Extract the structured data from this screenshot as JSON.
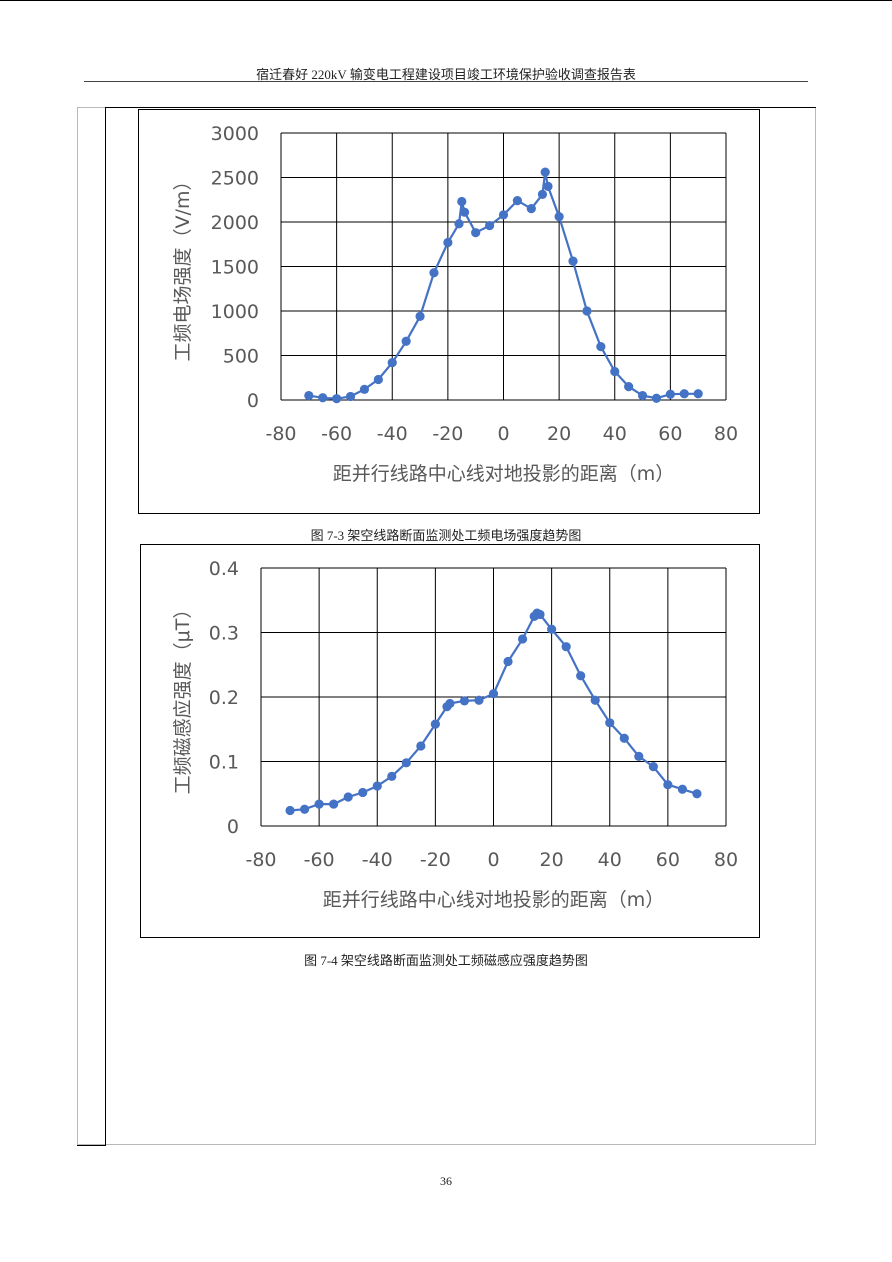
{
  "header": {
    "title": "宿迁春好 220kV 输变电工程建设项目竣工环境保护验收调查报告表"
  },
  "captions": {
    "fig1": "图 7-3  架空线路断面监测处工频电场强度趋势图",
    "fig2": "图 7-4  架空线路断面监测处工频磁感应强度趋势图"
  },
  "page_number": "36",
  "colors": {
    "series": "#4472C4",
    "grid": "#000000",
    "tick_text": "#595959"
  },
  "chart_data": [
    {
      "type": "line",
      "title": "",
      "xlabel": "距并行线路中心线对地投影的距离（m）",
      "ylabel": "工频电场强度（V/m）",
      "xlim": [
        -80,
        80
      ],
      "ylim": [
        0,
        3000
      ],
      "xticks": [
        -80,
        -60,
        -40,
        -20,
        0,
        20,
        40,
        60,
        80
      ],
      "yticks": [
        0,
        500,
        1000,
        1500,
        2000,
        2500,
        3000
      ],
      "grid": true,
      "markers": true,
      "series": [
        {
          "x": [
            -70,
            -65,
            -60,
            -55,
            -50,
            -45,
            -40,
            -35,
            -30,
            -25,
            -20,
            -16,
            -15,
            -14,
            -10,
            -5,
            0,
            5,
            10,
            14,
            15,
            16,
            20,
            25,
            30,
            35,
            40,
            45,
            50,
            55,
            60,
            65,
            70
          ],
          "y": [
            50,
            25,
            15,
            40,
            120,
            230,
            420,
            660,
            940,
            1430,
            1770,
            1980,
            2230,
            2110,
            1880,
            1960,
            2080,
            2240,
            2150,
            2310,
            2560,
            2400,
            2060,
            1560,
            1000,
            600,
            320,
            150,
            50,
            20,
            65,
            70,
            70
          ]
        }
      ]
    },
    {
      "type": "line",
      "title": "",
      "xlabel": "距并行线路中心线对地投影的距离（m）",
      "ylabel": "工频磁感应强度（μT）",
      "xlim": [
        -80,
        80
      ],
      "ylim": [
        0,
        0.4
      ],
      "xticks": [
        -80,
        -60,
        -40,
        -20,
        0,
        20,
        40,
        60,
        80
      ],
      "yticks": [
        0,
        0.1,
        0.2,
        0.3,
        0.4
      ],
      "grid": true,
      "markers": true,
      "series": [
        {
          "x": [
            -70,
            -65,
            -60,
            -55,
            -50,
            -45,
            -40,
            -35,
            -30,
            -25,
            -20,
            -16,
            -15,
            -10,
            -5,
            0,
            5,
            10,
            14,
            15,
            16,
            20,
            25,
            30,
            35,
            40,
            45,
            50,
            55,
            60,
            65,
            70
          ],
          "y": [
            0.024,
            0.026,
            0.034,
            0.034,
            0.045,
            0.052,
            0.062,
            0.077,
            0.098,
            0.124,
            0.158,
            0.185,
            0.19,
            0.194,
            0.195,
            0.205,
            0.255,
            0.29,
            0.325,
            0.33,
            0.328,
            0.305,
            0.278,
            0.233,
            0.195,
            0.16,
            0.136,
            0.108,
            0.092,
            0.064,
            0.057,
            0.05
          ]
        }
      ]
    }
  ]
}
